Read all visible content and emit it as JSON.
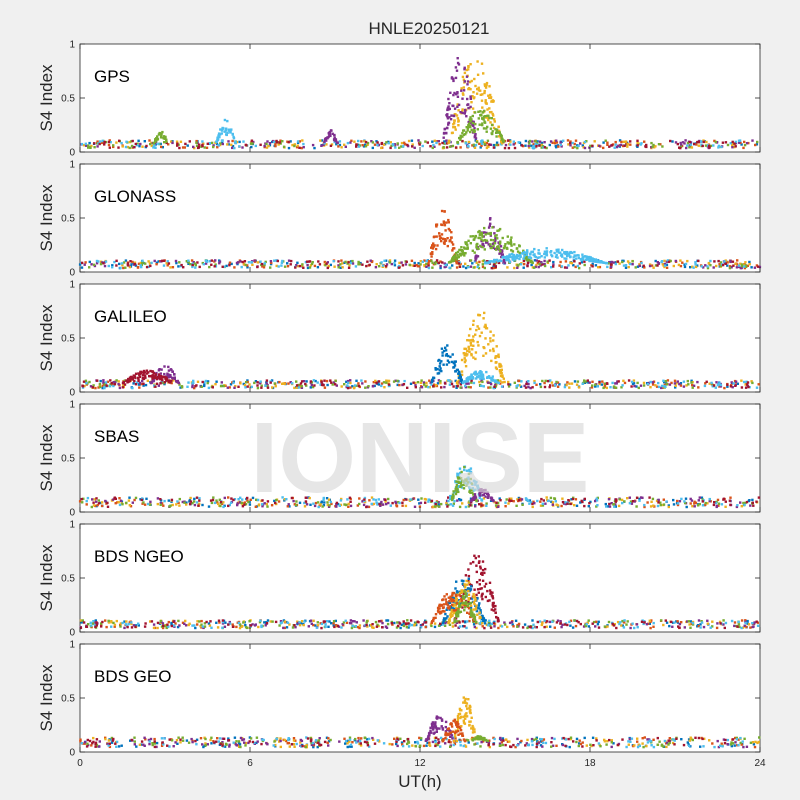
{
  "chart_data": {
    "type": "scatter",
    "title": "HNLE20250121",
    "xlabel": "UT(h)",
    "ylabel": "S4 Index",
    "xlim": [
      0,
      24
    ],
    "ylim": [
      0,
      1
    ],
    "xticks": [
      "0",
      "6",
      "12",
      "18",
      "24"
    ],
    "yticks": [
      "0",
      "0.5",
      "1"
    ],
    "watermark": "IONISE",
    "series_colors": [
      "#0072bd",
      "#d95319",
      "#edb120",
      "#7e2f8e",
      "#77ac30",
      "#4dbeee",
      "#a2142f"
    ],
    "panels": [
      {
        "name": "GPS",
        "baseline": 0.08,
        "bumps": [
          {
            "series": 2,
            "x": [
              13.0,
              14.9
            ],
            "peak": 0.9
          },
          {
            "series": 3,
            "x": [
              12.8,
              14.0
            ],
            "peak": 0.9
          },
          {
            "series": 4,
            "x": [
              13.3,
              15.0
            ],
            "peak": 0.4
          },
          {
            "series": 5,
            "x": [
              4.8,
              5.5
            ],
            "peak": 0.3
          },
          {
            "series": 4,
            "x": [
              2.6,
              3.1
            ],
            "peak": 0.2
          },
          {
            "series": 3,
            "x": [
              8.6,
              9.1
            ],
            "peak": 0.2
          }
        ]
      },
      {
        "name": "GLONASS",
        "baseline": 0.08,
        "bumps": [
          {
            "series": 1,
            "x": [
              12.3,
              13.3
            ],
            "peak": 0.58
          },
          {
            "series": 3,
            "x": [
              13.9,
              15.0
            ],
            "peak": 0.5
          },
          {
            "series": 4,
            "x": [
              13.0,
              16.0
            ],
            "peak": 0.42
          },
          {
            "series": 5,
            "x": [
              14.3,
              18.6
            ],
            "peak": 0.22
          }
        ]
      },
      {
        "name": "GALILEO",
        "baseline": 0.08,
        "bumps": [
          {
            "series": 2,
            "x": [
              13.3,
              15.0
            ],
            "peak": 0.75
          },
          {
            "series": 0,
            "x": [
              12.4,
              13.5
            ],
            "peak": 0.45
          },
          {
            "series": 3,
            "x": [
              2.5,
              3.5
            ],
            "peak": 0.25
          },
          {
            "series": 6,
            "x": [
              1.5,
              3.3
            ],
            "peak": 0.2
          },
          {
            "series": 5,
            "x": [
              13.5,
              14.8
            ],
            "peak": 0.2
          }
        ]
      },
      {
        "name": "SBAS",
        "baseline": 0.1,
        "bumps": [
          {
            "series": 5,
            "x": [
              13.0,
              14.2
            ],
            "peak": 0.45
          },
          {
            "series": 4,
            "x": [
              13.1,
              14.0
            ],
            "peak": 0.42
          },
          {
            "series": 3,
            "x": [
              13.8,
              14.6
            ],
            "peak": 0.22
          }
        ]
      },
      {
        "name": "BDS NGEO",
        "baseline": 0.08,
        "bumps": [
          {
            "series": 6,
            "x": [
              13.2,
              14.8
            ],
            "peak": 0.72
          },
          {
            "series": 0,
            "x": [
              12.8,
              14.3
            ],
            "peak": 0.55
          },
          {
            "series": 2,
            "x": [
              13.0,
              14.2
            ],
            "peak": 0.5
          },
          {
            "series": 1,
            "x": [
              12.4,
              14.0
            ],
            "peak": 0.4
          },
          {
            "series": 4,
            "x": [
              13.2,
              14.0
            ],
            "peak": 0.38
          }
        ]
      },
      {
        "name": "BDS GEO",
        "baseline": 0.1,
        "bumps": [
          {
            "series": 3,
            "x": [
              12.2,
              13.2
            ],
            "peak": 0.35
          },
          {
            "series": 2,
            "x": [
              13.2,
              14.0
            ],
            "peak": 0.55
          },
          {
            "series": 1,
            "x": [
              12.8,
              13.6
            ],
            "peak": 0.3
          },
          {
            "series": 4,
            "x": [
              13.8,
              14.4
            ],
            "peak": 0.15
          }
        ]
      }
    ]
  }
}
